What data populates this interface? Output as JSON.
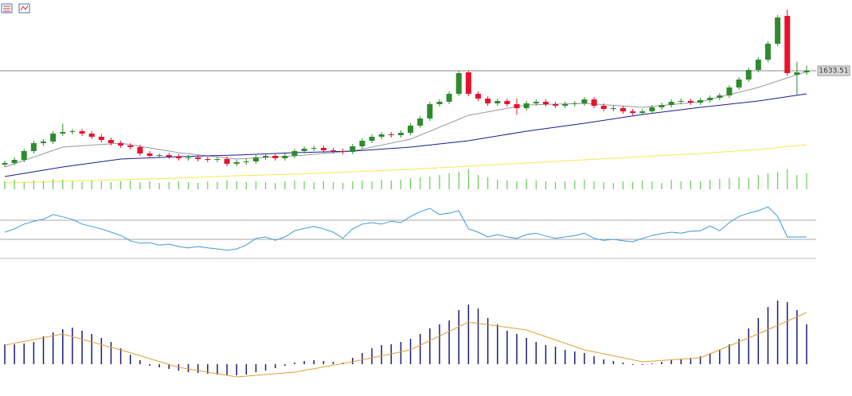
{
  "chart_data": [
    {
      "type": "candlestick",
      "ylim": [
        1490,
        1717.5
      ],
      "last_price": 1633.51,
      "up_color": "#2e8b2e",
      "down_color": "#e8112d",
      "open": [
        1515.5,
        1517.5,
        1521.5,
        1532.5,
        1542.5,
        1544.5,
        1554.5,
        1556.5,
        1557.5,
        1554.5,
        1550.5,
        1546.5,
        1542.5,
        1539.5,
        1537.5,
        1529.5,
        1526.5,
        1527.5,
        1525.5,
        1523.5,
        1524.5,
        1522.5,
        1521.5,
        1522.5,
        1516.5,
        1518.5,
        1519.5,
        1524.5,
        1526.5,
        1523.5,
        1526.5,
        1532.5,
        1535.5,
        1536.5,
        1533.5,
        1532.5,
        1531.5,
        1538.5,
        1545.5,
        1550.5,
        1553.5,
        1552.5,
        1555.5,
        1564.5,
        1573.5,
        1591.5,
        1594.5,
        1604.5,
        1631.5,
        1604.5,
        1598.5,
        1592.5,
        1595.5,
        1591.5,
        1586.5,
        1592.5,
        1594.5,
        1591.5,
        1589.5,
        1591.5,
        1592.5,
        1597.5,
        1589.5,
        1585.5,
        1586.5,
        1582.5,
        1580.5,
        1582.5,
        1587.5,
        1590.5,
        1594.5,
        1595.5,
        1593.5,
        1596.5,
        1599.5,
        1602.5,
        1612.5,
        1622.5,
        1634.5,
        1647.5,
        1667.5,
        1702.5,
        1628.5,
        1631.5
      ],
      "high": [
        1520.5,
        1524.5,
        1535.5,
        1545.5,
        1547.5,
        1557.5,
        1567,
        1560.5,
        1560.5,
        1557.5,
        1553.5,
        1549.5,
        1545.5,
        1542.5,
        1540.5,
        1532.5,
        1529.5,
        1530.5,
        1528.5,
        1527.5,
        1527.5,
        1525.5,
        1525.5,
        1525.5,
        1521.5,
        1522.5,
        1527.5,
        1529.5,
        1529.5,
        1529.5,
        1535.5,
        1538.5,
        1539.5,
        1539.5,
        1536.5,
        1535.5,
        1541.5,
        1548.5,
        1553.5,
        1556.5,
        1556.5,
        1558.5,
        1567.5,
        1576.5,
        1594.5,
        1597.5,
        1607.5,
        1633.5,
        1633.5,
        1607.5,
        1601.5,
        1598.5,
        1598.5,
        1598.5,
        1595.5,
        1597.5,
        1597.5,
        1594.5,
        1594.5,
        1595.5,
        1600.5,
        1600.5,
        1592.5,
        1589.5,
        1589.5,
        1585.5,
        1585.5,
        1590.5,
        1593.5,
        1597.5,
        1598.5,
        1598.5,
        1599.5,
        1602.5,
        1605.5,
        1615.5,
        1625.5,
        1637.5,
        1650.5,
        1670.5,
        1703.5,
        1710.5,
        1645,
        1640
      ],
      "low": [
        1512.5,
        1514.5,
        1518.5,
        1529.5,
        1539.5,
        1541.5,
        1551.5,
        1553.5,
        1551.5,
        1547.5,
        1543.5,
        1539.5,
        1536.5,
        1534.5,
        1526.5,
        1523.5,
        1523.5,
        1522.5,
        1520.5,
        1520.5,
        1519.5,
        1518.5,
        1518.5,
        1513.5,
        1513.5,
        1515.5,
        1516.5,
        1521.5,
        1520.5,
        1520.5,
        1523.5,
        1529.5,
        1532.5,
        1530.5,
        1529.5,
        1528.5,
        1528.5,
        1535.5,
        1542.5,
        1547.5,
        1549.5,
        1549.5,
        1552.5,
        1561.5,
        1570.5,
        1588.5,
        1591.5,
        1601.5,
        1601.5,
        1595.5,
        1589.5,
        1589.5,
        1588.5,
        1578,
        1583.5,
        1589.5,
        1588.5,
        1586.5,
        1586.5,
        1588.5,
        1589.5,
        1586.5,
        1582.5,
        1582.5,
        1579.5,
        1577.5,
        1577.5,
        1579.5,
        1584.5,
        1587.5,
        1591.5,
        1590.5,
        1590.5,
        1593.5,
        1596.5,
        1599.5,
        1609.5,
        1619.5,
        1631.5,
        1644.5,
        1664.5,
        1627.5,
        1602.5,
        1628.5
      ],
      "close": [
        1517.5,
        1521.5,
        1532.5,
        1542.5,
        1544.5,
        1554.5,
        1556.5,
        1557.5,
        1554.5,
        1550.5,
        1546.5,
        1542.5,
        1539.5,
        1537.5,
        1529.5,
        1526.5,
        1527.5,
        1525.5,
        1523.5,
        1524.5,
        1522.5,
        1521.5,
        1522.5,
        1516.5,
        1518.5,
        1519.5,
        1524.5,
        1526.5,
        1523.5,
        1526.5,
        1532.5,
        1535.5,
        1536.5,
        1533.5,
        1532.5,
        1531.5,
        1538.5,
        1545.5,
        1550.5,
        1553.5,
        1552.5,
        1555.5,
        1564.5,
        1573.5,
        1591.5,
        1594.5,
        1604.5,
        1630.5,
        1604.5,
        1598.5,
        1592.5,
        1595.5,
        1591.5,
        1586.5,
        1592.5,
        1594.5,
        1591.5,
        1589.5,
        1591.5,
        1592.5,
        1597.5,
        1589.5,
        1585.5,
        1586.5,
        1582.5,
        1580.5,
        1582.5,
        1587.5,
        1590.5,
        1594.5,
        1595.5,
        1593.5,
        1596.5,
        1599.5,
        1602.5,
        1612.5,
        1622.5,
        1634.5,
        1647.5,
        1667.5,
        1700.5,
        1630.5,
        1631.5,
        1633.51
      ],
      "series": [
        {
          "color": "#999999",
          "x": [
            0,
            6,
            12,
            18,
            24,
            30,
            36,
            42,
            48,
            54,
            60,
            66,
            72,
            78,
            83
          ],
          "values": [
            1512.5,
            1537.5,
            1542.5,
            1530.5,
            1522.5,
            1526.5,
            1532.5,
            1547.5,
            1577.5,
            1590.5,
            1592.5,
            1587.5,
            1594.5,
            1612.5,
            1632.5
          ]
        },
        {
          "color": "#1a1a8c",
          "x": [
            0,
            6,
            12,
            18,
            24,
            30,
            36,
            42,
            48,
            54,
            60,
            66,
            72,
            78,
            83
          ],
          "values": [
            1500.5,
            1512.5,
            1522.5,
            1525.5,
            1527.5,
            1530.5,
            1532.5,
            1537.5,
            1545.5,
            1557.5,
            1567.5,
            1578.5,
            1587.5,
            1595.5,
            1604.5
          ]
        },
        {
          "color": "#f5e94a",
          "x": [
            0,
            6,
            12,
            18,
            24,
            30,
            36,
            42,
            48,
            54,
            60,
            66,
            72,
            78,
            83
          ],
          "values": [
            1492.5,
            1494.5,
            1496.5,
            1498.5,
            1501.5,
            1503.5,
            1506.5,
            1509.5,
            1513.5,
            1517.5,
            1521.5,
            1525.5,
            1529.5,
            1534.5,
            1540.5
          ]
        }
      ]
    },
    {
      "type": "volume",
      "color": "#66cc55",
      "ylim": [
        0,
        60
      ],
      "values": [
        10,
        12,
        9,
        11,
        10,
        13,
        12,
        10,
        9,
        11,
        10,
        9,
        10,
        11,
        9,
        10,
        8,
        9,
        10,
        9,
        8,
        10,
        9,
        11,
        10,
        9,
        10,
        9,
        8,
        10,
        11,
        10,
        9,
        10,
        9,
        8,
        10,
        11,
        10,
        12,
        11,
        12,
        14,
        15,
        16,
        18,
        20,
        22,
        25,
        18,
        15,
        12,
        11,
        10,
        13,
        11,
        10,
        9,
        10,
        11,
        12,
        10,
        9,
        8,
        10,
        9,
        11,
        10,
        8,
        12,
        10,
        11,
        10,
        12,
        13,
        14,
        15,
        14,
        18,
        20,
        22,
        25,
        18,
        20
      ]
    },
    {
      "type": "rsi",
      "color": "#3a9ad9",
      "ylim": [
        0,
        100
      ],
      "levels": [
        70,
        30
      ],
      "values": [
        45,
        52,
        62,
        68,
        72,
        82,
        77,
        72,
        62,
        57,
        52,
        45,
        38,
        27,
        22,
        23,
        18,
        20,
        15,
        12,
        15,
        12,
        10,
        7,
        10,
        18,
        32,
        35,
        28,
        35,
        48,
        53,
        57,
        52,
        45,
        32,
        52,
        62,
        65,
        62,
        68,
        65,
        78,
        88,
        95,
        82,
        85,
        90,
        52,
        45,
        35,
        40,
        35,
        32,
        40,
        43,
        37,
        32,
        35,
        38,
        43,
        32,
        28,
        30,
        27,
        25,
        32,
        38,
        42,
        45,
        43,
        47,
        48,
        58,
        48,
        65,
        78,
        85,
        90,
        98,
        78,
        35,
        35,
        35
      ]
    },
    {
      "type": "macd",
      "color": "#1a1a7a",
      "ylim": [
        -20,
        90
      ],
      "values": [
        25,
        25,
        26,
        28,
        35,
        40,
        44,
        46,
        42,
        38,
        33,
        28,
        20,
        12,
        5,
        -2,
        -4,
        -6,
        -8,
        -10,
        -11,
        -12,
        -13,
        -14,
        -14,
        -13,
        -10,
        -8,
        -5,
        -2,
        2,
        4,
        5,
        4,
        3,
        2,
        8,
        14,
        20,
        24,
        25,
        28,
        32,
        38,
        45,
        50,
        55,
        68,
        75,
        70,
        58,
        50,
        42,
        38,
        33,
        28,
        24,
        22,
        18,
        16,
        14,
        10,
        6,
        4,
        2,
        0,
        -1,
        1,
        3,
        5,
        6,
        8,
        10,
        14,
        18,
        25,
        32,
        45,
        58,
        72,
        80,
        78,
        68,
        50
      ],
      "signal": {
        "color": "#e0a030",
        "x": [
          0,
          6,
          12,
          18,
          24,
          30,
          36,
          42,
          48,
          54,
          60,
          66,
          72,
          78,
          83
        ],
        "values": [
          24,
          38,
          18,
          -4,
          -16,
          -10,
          3,
          18,
          53,
          43,
          18,
          3,
          8,
          38,
          65
        ]
      }
    }
  ]
}
